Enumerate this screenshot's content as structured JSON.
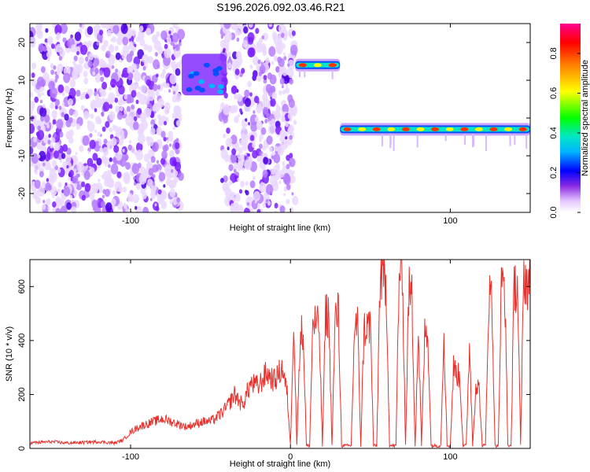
{
  "title": "S196.2026.092.03.46.R21",
  "chart_data": [
    {
      "type": "heatmap",
      "name": "spectrogram",
      "xlabel": "Height of straight line (km)",
      "ylabel": "Frequency (Hz)",
      "xlim": [
        -163,
        150
      ],
      "ylim": [
        -25,
        25
      ],
      "xticks": [
        -100,
        0,
        100
      ],
      "xtick_labels": [
        "-100",
        "",
        "100"
      ],
      "yticks": [
        -20,
        -10,
        0,
        10,
        20
      ],
      "ytick_labels": [
        "-20",
        "-10",
        "0",
        "10",
        "20"
      ],
      "colorbar": {
        "label": "Normalized spectral amplitude",
        "range": [
          0,
          0.95
        ],
        "ticks": [
          0.0,
          0.2,
          0.4,
          0.6,
          0.8
        ],
        "tick_labels": [
          "0.0",
          "0.2",
          "0.4",
          "0.6",
          "0.8"
        ],
        "colormap": [
          "#ffffff",
          "#e6c8ff",
          "#a050ff",
          "#6a00ff",
          "#0000ff",
          "#00b4ff",
          "#00e6c8",
          "#00ff00",
          "#ffff00",
          "#ff8000",
          "#ff0000",
          "#ff0090"
        ]
      },
      "features": [
        {
          "name": "noise region",
          "x_range": [
            -163,
            -68
          ],
          "freq_range": [
            -25,
            25
          ],
          "amplitude": 0.1
        },
        {
          "name": "noise region",
          "x_range": [
            -43,
            3
          ],
          "freq_range": [
            -25,
            25
          ],
          "amplitude": 0.1
        },
        {
          "name": "tone cluster",
          "x_range": [
            -68,
            -40
          ],
          "freq_range": [
            6,
            17
          ],
          "amplitude": 0.2
        },
        {
          "name": "tone",
          "x_range": [
            3,
            31
          ],
          "freq": 14,
          "amplitude": 0.9
        },
        {
          "name": "tone",
          "x_range": [
            31,
            150
          ],
          "freq": -3,
          "amplitude": 0.8
        }
      ]
    },
    {
      "type": "line",
      "name": "snr",
      "xlabel": "Height of straight line (km)",
      "ylabel": "SNR (10 * v/v)",
      "xlim": [
        -163,
        150
      ],
      "ylim": [
        0,
        700
      ],
      "xticks": [
        -100,
        0,
        100
      ],
      "xtick_labels": [
        "-100",
        "0",
        "100"
      ],
      "yticks": [
        0,
        200,
        400,
        600
      ],
      "ytick_labels": [
        "0",
        "200",
        "400",
        "600"
      ],
      "color": "#e8302c",
      "series": [
        {
          "name": "SNR",
          "x": [
            -163,
            -150,
            -140,
            -130,
            -120,
            -110,
            -105,
            -100,
            -95,
            -90,
            -85,
            -80,
            -75,
            -70,
            -65,
            -60,
            -55,
            -50,
            -45,
            -40,
            -35,
            -30,
            -25,
            -20,
            -15,
            -10,
            -5,
            -2,
            0,
            2,
            4,
            6,
            8,
            10,
            12,
            14,
            16,
            18,
            20,
            22,
            24,
            26,
            28,
            30,
            32,
            34,
            36,
            38,
            40,
            42,
            44,
            46,
            48,
            50,
            52,
            54,
            56,
            58,
            60,
            62,
            64,
            66,
            68,
            70,
            72,
            74,
            76,
            78,
            80,
            82,
            84,
            86,
            88,
            90,
            92,
            94,
            96,
            98,
            100,
            102,
            104,
            106,
            108,
            110,
            112,
            114,
            116,
            118,
            120,
            122,
            124,
            126,
            128,
            130,
            132,
            134,
            136,
            138,
            140,
            142,
            144,
            146,
            148,
            150
          ],
          "values": [
            20,
            25,
            20,
            22,
            25,
            20,
            30,
            60,
            80,
            90,
            100,
            110,
            100,
            90,
            80,
            90,
            100,
            100,
            120,
            150,
            200,
            160,
            240,
            230,
            280,
            250,
            300,
            200,
            10,
            500,
            10,
            420,
            430,
            10,
            10,
            470,
            460,
            440,
            10,
            500,
            490,
            10,
            480,
            500,
            10,
            10,
            10,
            10,
            440,
            460,
            10,
            440,
            450,
            460,
            10,
            10,
            620,
            630,
            600,
            10,
            10,
            10,
            650,
            680,
            10,
            580,
            560,
            10,
            440,
            10,
            420,
            420,
            10,
            10,
            10,
            10,
            440,
            10,
            10,
            300,
            280,
            260,
            10,
            10,
            400,
            10,
            240,
            220,
            10,
            10,
            560,
            560,
            10,
            10,
            600,
            620,
            10,
            10,
            600,
            620,
            10,
            650,
            620,
            600
          ]
        }
      ]
    }
  ]
}
